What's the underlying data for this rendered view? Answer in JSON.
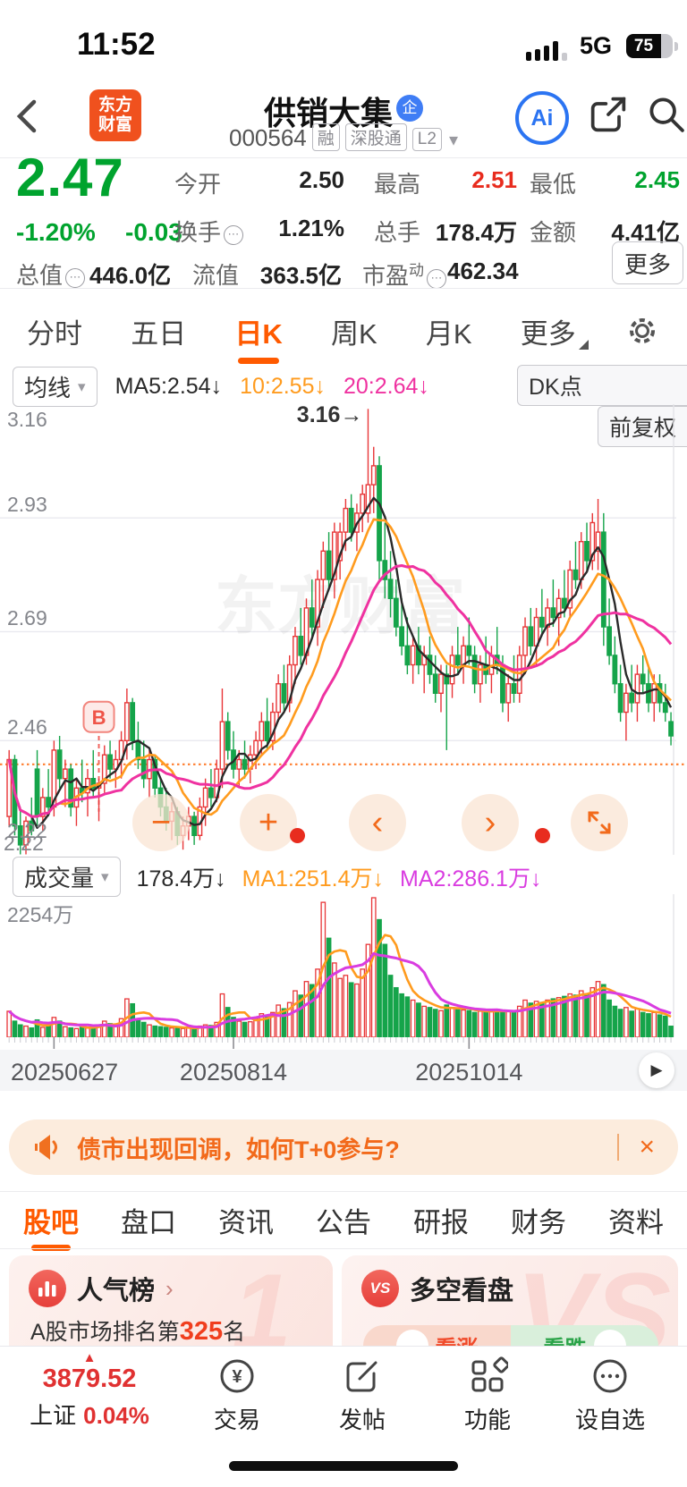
{
  "status": {
    "time": "11:52",
    "network": "5G",
    "battery": "75"
  },
  "icons": {
    "back": "‹",
    "caret_down": "▾",
    "minus": "−",
    "plus": "+",
    "prev": "‹",
    "next": "›",
    "close": "×",
    "play": "▶",
    "chevron": "›",
    "up_triangle": "▲",
    "info": "⋯",
    "yuan": "¥"
  },
  "header": {
    "logo_line1": "东方",
    "logo_line2": "财富",
    "title": "供销大集",
    "badge": "企",
    "code": "000564",
    "tags": [
      "融",
      "深股通",
      "L2"
    ],
    "ai_label": "Ai"
  },
  "quote": {
    "price": "2.47",
    "change_pct": "-1.20%",
    "change_amt": "-0.03",
    "open_label": "今开",
    "open": "2.50",
    "high_label": "最高",
    "high": "2.51",
    "low_label": "最低",
    "low": "2.45",
    "turnover_label": "换手",
    "turnover": "1.21%",
    "volume_label": "总手",
    "volume": "178.4万",
    "amount_label": "金额",
    "amount": "4.41亿",
    "mktcap_label": "总值",
    "mktcap": "446.0亿",
    "float_label": "流值",
    "float": "363.5亿",
    "pe_label": "市盈",
    "pe_sub": "动",
    "pe": "462.34",
    "more": "更多"
  },
  "period_tabs": [
    {
      "label": "分时"
    },
    {
      "label": "五日"
    },
    {
      "label": "日K"
    },
    {
      "label": "周K"
    },
    {
      "label": "月K"
    },
    {
      "label": "更多"
    }
  ],
  "indicator_bar": {
    "selector": "均线",
    "ma5": "MA5:2.54↓",
    "ma10": "10:2.55↓",
    "ma20": "20:2.64↓",
    "dk_button": "DK点",
    "fq_button": "前复权"
  },
  "volume_header": {
    "selector": "成交量",
    "current": "178.4万↓",
    "ma1": "MA1:251.4万↓",
    "ma2": "MA2:286.1万↓"
  },
  "chart_data": {
    "type": "candlestick+volume",
    "title": "供销大集 000564 日K 前复权",
    "y_labels": [
      "3.16",
      "2.93",
      "2.69",
      "2.46",
      "2.22"
    ],
    "grid_prices": [
      2.93,
      2.69,
      2.46
    ],
    "price_range": [
      2.22,
      3.16
    ],
    "ref_price_dashed": 2.41,
    "annotation_text": "3.16→",
    "annotation_index": 64,
    "b_marker_label": "B",
    "b_marker_index": 16,
    "watermark": "东方财富",
    "vol_max_label": "2254万",
    "vol_max": 2254,
    "dates": [
      {
        "text": "20250627",
        "index": 8,
        "align": "left"
      },
      {
        "text": "20250814",
        "index": 40,
        "align": "center"
      },
      {
        "text": "20251014",
        "index": 82,
        "align": "center"
      }
    ],
    "candles": [
      [
        2.3,
        2.44,
        2.28,
        2.42,
        420
      ],
      [
        2.42,
        2.43,
        2.26,
        2.28,
        260
      ],
      [
        2.28,
        2.32,
        2.22,
        2.24,
        200
      ],
      [
        2.24,
        2.3,
        2.22,
        2.29,
        180
      ],
      [
        2.29,
        2.34,
        2.26,
        2.27,
        150
      ],
      [
        2.4,
        2.44,
        2.28,
        2.3,
        280
      ],
      [
        2.3,
        2.36,
        2.27,
        2.34,
        160
      ],
      [
        2.34,
        2.4,
        2.3,
        2.32,
        190
      ],
      [
        2.32,
        2.46,
        2.3,
        2.44,
        320
      ],
      [
        2.44,
        2.47,
        2.36,
        2.38,
        260
      ],
      [
        2.38,
        2.42,
        2.32,
        2.4,
        170
      ],
      [
        2.4,
        2.41,
        2.3,
        2.32,
        150
      ],
      [
        2.32,
        2.38,
        2.28,
        2.36,
        140
      ],
      [
        2.36,
        2.42,
        2.33,
        2.35,
        160
      ],
      [
        2.35,
        2.4,
        2.3,
        2.38,
        150
      ],
      [
        2.38,
        2.44,
        2.34,
        2.36,
        180
      ],
      [
        2.36,
        2.38,
        2.29,
        2.37,
        200
      ],
      [
        2.37,
        2.45,
        2.35,
        2.43,
        260
      ],
      [
        2.43,
        2.46,
        2.38,
        2.4,
        220
      ],
      [
        2.4,
        2.44,
        2.36,
        2.42,
        180
      ],
      [
        2.42,
        2.48,
        2.38,
        2.46,
        300
      ],
      [
        2.46,
        2.57,
        2.42,
        2.54,
        620
      ],
      [
        2.54,
        2.55,
        2.44,
        2.46,
        540
      ],
      [
        2.46,
        2.5,
        2.4,
        2.42,
        300
      ],
      [
        2.42,
        2.46,
        2.36,
        2.38,
        240
      ],
      [
        2.38,
        2.44,
        2.34,
        2.42,
        200
      ],
      [
        2.42,
        2.43,
        2.34,
        2.36,
        180
      ],
      [
        2.36,
        2.38,
        2.3,
        2.32,
        170
      ],
      [
        2.32,
        2.36,
        2.27,
        2.29,
        160
      ],
      [
        2.29,
        2.33,
        2.25,
        2.31,
        150
      ],
      [
        2.31,
        2.32,
        2.24,
        2.26,
        170
      ],
      [
        2.26,
        2.3,
        2.23,
        2.28,
        140
      ],
      [
        2.28,
        2.32,
        2.25,
        2.3,
        150
      ],
      [
        2.3,
        2.31,
        2.24,
        2.26,
        130
      ],
      [
        2.26,
        2.34,
        2.25,
        2.32,
        180
      ],
      [
        2.32,
        2.38,
        2.28,
        2.36,
        200
      ],
      [
        2.36,
        2.4,
        2.32,
        2.34,
        190
      ],
      [
        2.34,
        2.42,
        2.33,
        2.4,
        240
      ],
      [
        2.4,
        2.57,
        2.36,
        2.5,
        700
      ],
      [
        2.5,
        2.52,
        2.42,
        2.44,
        480
      ],
      [
        2.44,
        2.48,
        2.38,
        2.4,
        320
      ],
      [
        2.4,
        2.44,
        2.36,
        2.42,
        260
      ],
      [
        2.42,
        2.46,
        2.38,
        2.4,
        240
      ],
      [
        2.4,
        2.45,
        2.37,
        2.43,
        250
      ],
      [
        2.43,
        2.48,
        2.4,
        2.46,
        300
      ],
      [
        2.46,
        2.52,
        2.43,
        2.5,
        380
      ],
      [
        2.5,
        2.55,
        2.44,
        2.46,
        350
      ],
      [
        2.46,
        2.54,
        2.44,
        2.52,
        400
      ],
      [
        2.52,
        2.6,
        2.5,
        2.58,
        520
      ],
      [
        2.58,
        2.62,
        2.52,
        2.54,
        460
      ],
      [
        2.54,
        2.64,
        2.52,
        2.62,
        560
      ],
      [
        2.62,
        2.7,
        2.58,
        2.68,
        750
      ],
      [
        2.68,
        2.74,
        2.62,
        2.64,
        680
      ],
      [
        2.64,
        2.76,
        2.62,
        2.74,
        900
      ],
      [
        2.74,
        2.8,
        2.68,
        2.7,
        850
      ],
      [
        2.7,
        2.82,
        2.66,
        2.8,
        1100
      ],
      [
        2.8,
        2.88,
        2.74,
        2.86,
        2180
      ],
      [
        2.86,
        2.9,
        2.78,
        2.8,
        1600
      ],
      [
        2.8,
        2.92,
        2.76,
        2.9,
        1200
      ],
      [
        2.84,
        2.92,
        2.8,
        2.9,
        950
      ],
      [
        2.9,
        2.97,
        2.86,
        2.95,
        1000
      ],
      [
        2.95,
        2.98,
        2.88,
        2.9,
        880
      ],
      [
        2.9,
        2.96,
        2.86,
        2.94,
        860
      ],
      [
        2.94,
        3.0,
        2.9,
        2.98,
        1100
      ],
      [
        2.94,
        3.16,
        2.92,
        3.0,
        1500
      ],
      [
        3.0,
        3.08,
        2.94,
        3.04,
        2254
      ],
      [
        3.04,
        3.06,
        2.8,
        2.84,
        1900
      ],
      [
        2.84,
        2.92,
        2.76,
        2.8,
        1500
      ],
      [
        2.8,
        2.86,
        2.72,
        2.76,
        1000
      ],
      [
        2.76,
        2.8,
        2.68,
        2.7,
        800
      ],
      [
        2.7,
        2.76,
        2.64,
        2.66,
        700
      ],
      [
        2.66,
        2.72,
        2.6,
        2.62,
        650
      ],
      [
        2.62,
        2.68,
        2.58,
        2.66,
        600
      ],
      [
        2.66,
        2.7,
        2.6,
        2.62,
        550
      ],
      [
        2.62,
        2.66,
        2.56,
        2.64,
        500
      ],
      [
        2.64,
        2.68,
        2.58,
        2.6,
        480
      ],
      [
        2.6,
        2.64,
        2.54,
        2.56,
        450
      ],
      [
        2.56,
        2.62,
        2.52,
        2.6,
        430
      ],
      [
        2.6,
        2.62,
        2.44,
        2.58,
        520
      ],
      [
        2.58,
        2.66,
        2.55,
        2.64,
        480
      ],
      [
        2.64,
        2.7,
        2.6,
        2.62,
        460
      ],
      [
        2.62,
        2.68,
        2.58,
        2.66,
        440
      ],
      [
        2.66,
        2.72,
        2.62,
        2.64,
        430
      ],
      [
        2.64,
        2.66,
        2.56,
        2.58,
        400
      ],
      [
        2.58,
        2.64,
        2.54,
        2.62,
        420
      ],
      [
        2.62,
        2.68,
        2.58,
        2.6,
        410
      ],
      [
        2.6,
        2.66,
        2.56,
        2.64,
        430
      ],
      [
        2.64,
        2.7,
        2.6,
        2.62,
        450
      ],
      [
        2.62,
        2.64,
        2.52,
        2.54,
        400
      ],
      [
        2.54,
        2.6,
        2.5,
        2.58,
        420
      ],
      [
        2.58,
        2.64,
        2.54,
        2.56,
        400
      ],
      [
        2.56,
        2.66,
        2.54,
        2.64,
        500
      ],
      [
        2.64,
        2.72,
        2.6,
        2.7,
        600
      ],
      [
        2.7,
        2.74,
        2.64,
        2.66,
        550
      ],
      [
        2.66,
        2.74,
        2.62,
        2.72,
        580
      ],
      [
        2.72,
        2.78,
        2.68,
        2.7,
        560
      ],
      [
        2.7,
        2.76,
        2.66,
        2.74,
        600
      ],
      [
        2.74,
        2.8,
        2.7,
        2.72,
        620
      ],
      [
        2.72,
        2.78,
        2.66,
        2.76,
        640
      ],
      [
        2.76,
        2.82,
        2.72,
        2.74,
        660
      ],
      [
        2.74,
        2.84,
        2.72,
        2.82,
        700
      ],
      [
        2.82,
        2.88,
        2.78,
        2.8,
        680
      ],
      [
        2.8,
        2.9,
        2.78,
        2.88,
        750
      ],
      [
        2.88,
        2.92,
        2.82,
        2.84,
        700
      ],
      [
        2.84,
        2.94,
        2.82,
        2.92,
        800
      ],
      [
        2.86,
        2.97,
        2.82,
        2.9,
        900
      ],
      [
        2.9,
        2.94,
        2.66,
        2.7,
        850
      ],
      [
        2.7,
        2.76,
        2.62,
        2.64,
        600
      ],
      [
        2.64,
        2.68,
        2.56,
        2.58,
        500
      ],
      [
        2.58,
        2.62,
        2.5,
        2.52,
        450
      ],
      [
        2.52,
        2.58,
        2.46,
        2.56,
        480
      ],
      [
        2.56,
        2.62,
        2.52,
        2.54,
        420
      ],
      [
        2.54,
        2.62,
        2.5,
        2.6,
        460
      ],
      [
        2.6,
        2.64,
        2.56,
        2.58,
        400
      ],
      [
        2.58,
        2.62,
        2.52,
        2.54,
        380
      ],
      [
        2.54,
        2.6,
        2.5,
        2.58,
        400
      ],
      [
        2.58,
        2.6,
        2.52,
        2.54,
        360
      ],
      [
        2.54,
        2.58,
        2.5,
        2.52,
        340
      ],
      [
        2.5,
        2.52,
        2.45,
        2.47,
        178
      ]
    ],
    "colors": {
      "up": "#e83638",
      "down": "#15a44a",
      "ma5": "#2a2a2a",
      "ma10": "#ff9b1e",
      "ma20": "#ef32a0",
      "vol_ma1": "#ff9b1e",
      "vol_ma2": "#d93ce0",
      "ref_dashed": "#ff7d2e",
      "accent": "#ff5a00"
    }
  },
  "banner": {
    "text": "债市出现回调，如何T+0参与?"
  },
  "section_tabs": [
    {
      "label": "股吧"
    },
    {
      "label": "盘口"
    },
    {
      "label": "资讯"
    },
    {
      "label": "公告"
    },
    {
      "label": "研报"
    },
    {
      "label": "财务"
    },
    {
      "label": "资料"
    }
  ],
  "cards": {
    "rank": {
      "title": "人气榜",
      "prefix": "A股市场排名第",
      "rank": "325",
      "suffix": "名",
      "watermark": "1"
    },
    "vs": {
      "title": "多空看盘",
      "icon_text": "VS",
      "bull": "看涨",
      "bear": "看跌",
      "watermark": "VS"
    }
  },
  "nav": {
    "index_value": "3879.52",
    "index_name": "上证",
    "index_pct": "0.04%",
    "items": [
      {
        "label": "交易"
      },
      {
        "label": "发帖"
      },
      {
        "label": "功能"
      },
      {
        "label": "设自选"
      }
    ]
  }
}
